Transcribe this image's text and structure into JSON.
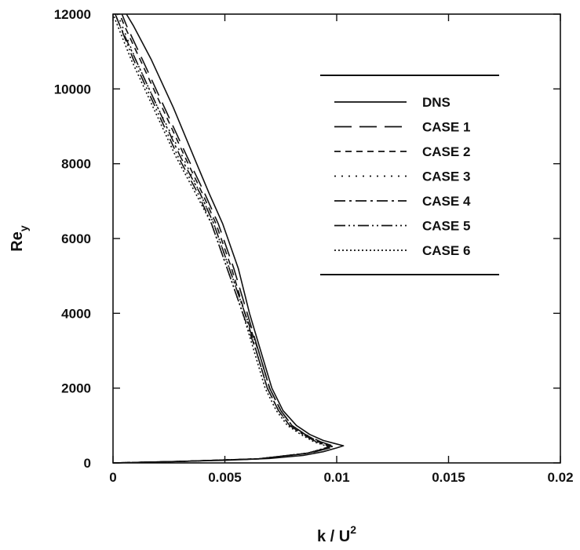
{
  "chart_data": {
    "type": "line",
    "xlabel": "k / U",
    "xlabel_superscript": "2",
    "ylabel": "Re",
    "ylabel_subscript": "y",
    "xlim": [
      0,
      0.02
    ],
    "ylim": [
      0,
      12000
    ],
    "x_ticks": [
      0,
      0.005,
      0.01,
      0.015,
      0.02
    ],
    "x_tick_labels": [
      "0",
      "0.005",
      "0.01",
      "0.015",
      "0.02"
    ],
    "y_ticks": [
      0,
      2000,
      4000,
      6000,
      8000,
      10000,
      12000
    ],
    "y_tick_labels": [
      "0",
      "2000",
      "4000",
      "6000",
      "8000",
      "10000",
      "12000"
    ],
    "grid": false,
    "legend_position": "top-right",
    "series": [
      {
        "name": "DNS",
        "style": "solid",
        "points": [
          [
            0.0,
            0
          ],
          [
            0.0015,
            20
          ],
          [
            0.003,
            40
          ],
          [
            0.005,
            70
          ],
          [
            0.007,
            120
          ],
          [
            0.0085,
            200
          ],
          [
            0.0094,
            300
          ],
          [
            0.01,
            400
          ],
          [
            0.0103,
            460
          ],
          [
            0.0099,
            520
          ],
          [
            0.0094,
            600
          ],
          [
            0.0088,
            760
          ],
          [
            0.0082,
            1000
          ],
          [
            0.0076,
            1400
          ],
          [
            0.0071,
            2000
          ],
          [
            0.0066,
            3000
          ],
          [
            0.0061,
            4000
          ],
          [
            0.0056,
            5200
          ],
          [
            0.0049,
            6400
          ],
          [
            0.0043,
            7200
          ],
          [
            0.0036,
            8200
          ],
          [
            0.0027,
            9500
          ],
          [
            0.0017,
            10800
          ],
          [
            0.0009,
            11700
          ],
          [
            0.0006,
            12000
          ]
        ]
      },
      {
        "name": "CASE 1",
        "style": "dash",
        "points": [
          [
            0.0,
            0
          ],
          [
            0.003,
            40
          ],
          [
            0.0065,
            110
          ],
          [
            0.0088,
            260
          ],
          [
            0.0097,
            400
          ],
          [
            0.0099,
            440
          ],
          [
            0.0093,
            560
          ],
          [
            0.0086,
            760
          ],
          [
            0.008,
            1000
          ],
          [
            0.0075,
            1400
          ],
          [
            0.007,
            2000
          ],
          [
            0.0065,
            3000
          ],
          [
            0.006,
            4000
          ],
          [
            0.0054,
            5200
          ],
          [
            0.0047,
            6400
          ],
          [
            0.0041,
            7200
          ],
          [
            0.0033,
            8200
          ],
          [
            0.0023,
            9500
          ],
          [
            0.0013,
            10800
          ],
          [
            0.0006,
            11700
          ],
          [
            0.0004,
            12000
          ]
        ]
      },
      {
        "name": "CASE 2",
        "style": "shortdash",
        "points": [
          [
            0.0,
            0
          ],
          [
            0.003,
            40
          ],
          [
            0.0065,
            110
          ],
          [
            0.0087,
            260
          ],
          [
            0.0096,
            400
          ],
          [
            0.0098,
            440
          ],
          [
            0.0092,
            560
          ],
          [
            0.0086,
            760
          ],
          [
            0.008,
            1000
          ],
          [
            0.0075,
            1400
          ],
          [
            0.007,
            2000
          ],
          [
            0.0065,
            3000
          ],
          [
            0.0059,
            4000
          ],
          [
            0.0053,
            5200
          ],
          [
            0.0046,
            6400
          ],
          [
            0.004,
            7200
          ],
          [
            0.0032,
            8200
          ],
          [
            0.0022,
            9500
          ],
          [
            0.0012,
            10800
          ],
          [
            0.0005,
            11700
          ],
          [
            0.0003,
            12000
          ]
        ]
      },
      {
        "name": "CASE 3",
        "style": "dot",
        "points": [
          [
            0.0,
            0
          ],
          [
            0.003,
            40
          ],
          [
            0.0065,
            110
          ],
          [
            0.0087,
            260
          ],
          [
            0.0096,
            400
          ],
          [
            0.0098,
            440
          ],
          [
            0.0092,
            560
          ],
          [
            0.0086,
            760
          ],
          [
            0.008,
            1000
          ],
          [
            0.0075,
            1400
          ],
          [
            0.007,
            2000
          ],
          [
            0.0065,
            3000
          ],
          [
            0.0059,
            4000
          ],
          [
            0.0052,
            5200
          ],
          [
            0.0045,
            6400
          ],
          [
            0.0039,
            7200
          ],
          [
            0.0031,
            8200
          ],
          [
            0.002,
            9500
          ],
          [
            0.001,
            10800
          ],
          [
            0.0004,
            11700
          ],
          [
            0.0002,
            12000
          ]
        ]
      },
      {
        "name": "CASE 4",
        "style": "dashdot",
        "points": [
          [
            0.0,
            0
          ],
          [
            0.003,
            40
          ],
          [
            0.0065,
            110
          ],
          [
            0.0087,
            260
          ],
          [
            0.0096,
            400
          ],
          [
            0.0097,
            440
          ],
          [
            0.0091,
            560
          ],
          [
            0.0085,
            760
          ],
          [
            0.0079,
            1000
          ],
          [
            0.0074,
            1400
          ],
          [
            0.0069,
            2000
          ],
          [
            0.0064,
            3000
          ],
          [
            0.0059,
            4000
          ],
          [
            0.0052,
            5200
          ],
          [
            0.0045,
            6400
          ],
          [
            0.0039,
            7200
          ],
          [
            0.003,
            8200
          ],
          [
            0.002,
            9500
          ],
          [
            0.001,
            10800
          ],
          [
            0.0003,
            11700
          ],
          [
            0.0001,
            12000
          ]
        ]
      },
      {
        "name": "CASE 5",
        "style": "dashdotdot",
        "points": [
          [
            0.0,
            0
          ],
          [
            0.003,
            40
          ],
          [
            0.0065,
            110
          ],
          [
            0.0087,
            260
          ],
          [
            0.0095,
            400
          ],
          [
            0.0097,
            440
          ],
          [
            0.0091,
            560
          ],
          [
            0.0085,
            760
          ],
          [
            0.0079,
            1000
          ],
          [
            0.0074,
            1400
          ],
          [
            0.0069,
            2000
          ],
          [
            0.0064,
            3000
          ],
          [
            0.0058,
            4000
          ],
          [
            0.0051,
            5200
          ],
          [
            0.0044,
            6400
          ],
          [
            0.0038,
            7200
          ],
          [
            0.0029,
            8200
          ],
          [
            0.0019,
            9500
          ],
          [
            0.0009,
            10800
          ],
          [
            0.0003,
            11700
          ],
          [
            0.0001,
            12000
          ]
        ]
      },
      {
        "name": "CASE 6",
        "style": "finedot",
        "points": [
          [
            0.0,
            0
          ],
          [
            0.003,
            40
          ],
          [
            0.0065,
            110
          ],
          [
            0.0087,
            260
          ],
          [
            0.0095,
            400
          ],
          [
            0.0096,
            440
          ],
          [
            0.009,
            560
          ],
          [
            0.0084,
            760
          ],
          [
            0.0078,
            1000
          ],
          [
            0.0073,
            1400
          ],
          [
            0.0068,
            2000
          ],
          [
            0.0063,
            3000
          ],
          [
            0.0058,
            4000
          ],
          [
            0.0051,
            5200
          ],
          [
            0.0044,
            6400
          ],
          [
            0.0037,
            7200
          ],
          [
            0.0028,
            8200
          ],
          [
            0.0018,
            9500
          ],
          [
            0.0008,
            10800
          ],
          [
            0.0002,
            11700
          ],
          [
            0.0,
            12000
          ]
        ]
      }
    ]
  }
}
